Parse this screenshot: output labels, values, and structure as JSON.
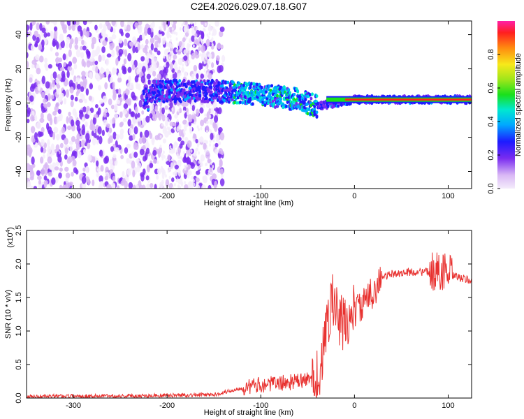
{
  "chart_data": [
    {
      "type": "heatmap",
      "title": "C2E4.2026.029.07.18.G07",
      "xlabel": "Height of straight line (km)",
      "ylabel": "Frequency (Hz)",
      "xlim": [
        -350,
        125
      ],
      "ylim": [
        -50,
        48
      ],
      "x_ticks": [
        -300,
        -200,
        -100,
        0,
        100
      ],
      "y_ticks": [
        -40,
        -20,
        0,
        20,
        40
      ],
      "colorbar": {
        "label": "Normalized spectral amplitude",
        "range": [
          0,
          1
        ],
        "ticks": [
          0.0,
          0.2,
          0.4,
          0.6,
          0.8
        ],
        "tick_labels": [
          "0.0",
          "0.2",
          "0.4",
          "0.6",
          "0.8"
        ]
      },
      "ridge": {
        "description_points_km": [
          -220,
          -150,
          -100,
          -60,
          -40,
          0,
          125
        ],
        "frequency_hz": [
          7,
          7,
          5,
          2,
          -2,
          2,
          2
        ]
      }
    },
    {
      "type": "line",
      "xlabel": "Height of straight line (km)",
      "ylabel": "SNR (10 * v/v)",
      "y_scale_label": "(x10",
      "y_scale_exponent": "4",
      "xlim": [
        -350,
        125
      ],
      "ylim": [
        0,
        2.5
      ],
      "x_ticks": [
        -300,
        -200,
        -100,
        0,
        100
      ],
      "y_ticks": [
        0.0,
        0.5,
        1.0,
        1.5,
        2.0,
        2.5
      ],
      "y_tick_labels": [
        "0.0",
        "0.5",
        "1.0",
        "1.5",
        "2.0",
        "2.5"
      ],
      "series_color": "#e8312f",
      "series": [
        {
          "name": "SNR",
          "x": [
            -350,
            -300,
            -250,
            -200,
            -150,
            -120,
            -100,
            -80,
            -60,
            -45,
            -40,
            -35,
            -30,
            -25,
            -20,
            -15,
            -10,
            -5,
            0,
            10,
            20,
            30,
            40,
            60,
            80,
            95,
            100,
            110,
            125
          ],
          "values": [
            0.02,
            0.03,
            0.03,
            0.04,
            0.05,
            0.15,
            0.2,
            0.22,
            0.25,
            0.28,
            0.3,
            0.5,
            1.0,
            1.5,
            1.3,
            1.1,
            1.1,
            1.2,
            1.3,
            1.4,
            1.6,
            1.8,
            1.85,
            1.88,
            1.88,
            1.9,
            1.85,
            1.8,
            1.75
          ]
        }
      ]
    }
  ]
}
